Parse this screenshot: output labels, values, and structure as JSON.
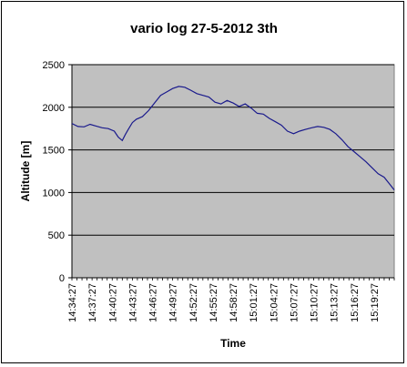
{
  "chart_data": {
    "type": "line",
    "title": "vario log 27-5-2012 3th",
    "xlabel": "Time",
    "ylabel": "Altitude [m]",
    "ylim": [
      0,
      2500
    ],
    "yticks": [
      0,
      500,
      1000,
      1500,
      2000,
      2500
    ],
    "grid": true,
    "legend": "none",
    "colors": {
      "plot_bg": "#c0c0c0",
      "line": "#1a1a8c",
      "grid": "#000000"
    },
    "categories": [
      "14:34:27",
      "14:37:27",
      "14:40:27",
      "14:43:27",
      "14:46:27",
      "14:49:27",
      "14:52:27",
      "14:55:27",
      "14:58:27",
      "15:01:27",
      "15:04:27",
      "15:07:27",
      "15:10:27",
      "15:13:27",
      "15:16:27",
      "15:19:27"
    ],
    "series": [
      {
        "x": [
          0,
          0.3,
          0.6,
          0.9,
          1.2,
          1.5,
          1.8,
          2.1,
          2.3,
          2.5,
          2.65,
          2.8,
          3.0,
          3.2,
          3.5,
          3.8,
          4.1,
          4.4,
          4.7,
          5.0,
          5.3,
          5.6,
          5.9,
          6.2,
          6.5,
          6.8,
          7.1,
          7.4,
          7.7,
          8.0,
          8.3,
          8.6,
          8.9,
          9.2,
          9.5,
          9.8,
          10.1,
          10.4,
          10.7,
          11.0,
          11.3,
          11.6,
          11.9,
          12.2,
          12.5,
          12.8,
          13.1,
          13.4,
          13.7,
          14.0,
          14.3,
          14.6,
          14.9,
          15.2,
          15.5,
          15.8,
          16.0
        ],
        "y": [
          1810,
          1775,
          1770,
          1800,
          1780,
          1760,
          1750,
          1720,
          1650,
          1610,
          1680,
          1740,
          1820,
          1860,
          1890,
          1960,
          2050,
          2140,
          2180,
          2220,
          2245,
          2235,
          2200,
          2160,
          2140,
          2120,
          2060,
          2040,
          2080,
          2050,
          2010,
          2040,
          1990,
          1930,
          1920,
          1870,
          1830,
          1790,
          1720,
          1690,
          1720,
          1740,
          1760,
          1775,
          1765,
          1740,
          1690,
          1620,
          1540,
          1480,
          1420,
          1360,
          1290,
          1220,
          1180,
          1090,
          1030
        ]
      }
    ]
  }
}
